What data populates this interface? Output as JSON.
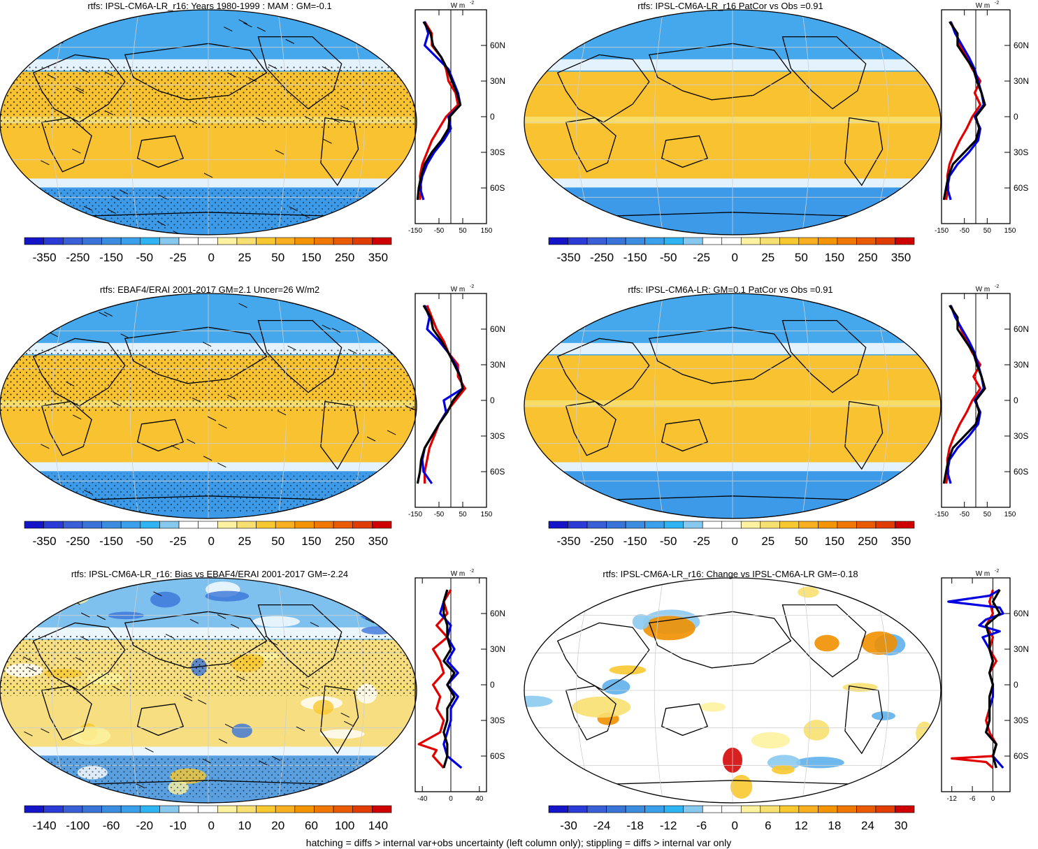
{
  "footer": "hatching = diffs > internal var+obs uncertainty (left column only); stippling = diffs > internal var only",
  "colorbar_colors": [
    "#1414c8",
    "#2b3bd8",
    "#3a5fd6",
    "#3a74d8",
    "#3c8ce0",
    "#3aa0ec",
    "#2eb4f2",
    "#86c8ee",
    "#ffffff",
    "#ffffff",
    "#fdf2a0",
    "#f8e070",
    "#f8c830",
    "#f8b020",
    "#f49400",
    "#f07800",
    "#ea5a00",
    "#e23c00",
    "#cf0000"
  ],
  "colorbars": {
    "rtfs": [
      "-350",
      "-250",
      "-150",
      "-50",
      "-25",
      "0",
      "25",
      "50",
      "150",
      "250",
      "350"
    ],
    "bias": [
      "-140",
      "-100",
      "-60",
      "-20",
      "-10",
      "0",
      "10",
      "20",
      "60",
      "100",
      "140"
    ],
    "change": [
      "-30",
      "-24",
      "-18",
      "-12",
      "-6",
      "0",
      "6",
      "12",
      "18",
      "24",
      "30"
    ]
  },
  "chart_data": [
    {
      "type": "heatmap",
      "panel": "a",
      "title": "rtfs: IPSL-CM6A-LR_r16: Years 1980-1999 : MAM : GM=-0.1",
      "colorbar": "rtfs",
      "stippled": true,
      "hatched": true
    },
    {
      "type": "line",
      "panel": "a-zonal",
      "unit_label": "W m",
      "unit_superscript": "-2",
      "xlim": [
        -150,
        150
      ],
      "xticks": [
        "-150",
        "-50",
        "50",
        "150"
      ],
      "ylim": [
        -90,
        90
      ],
      "yticks": [
        "60N",
        "30N",
        "0",
        "30S",
        "60S"
      ],
      "series": [
        {
          "color": "#e00000",
          "lat": [
            80,
            70,
            60,
            50,
            40,
            30,
            20,
            10,
            0,
            -10,
            -20,
            -30,
            -40,
            -50,
            -60,
            -70
          ],
          "value": [
            -110,
            -80,
            -80,
            -40,
            -20,
            -10,
            20,
            30,
            -20,
            -50,
            -80,
            -100,
            -120,
            -130,
            -125,
            -130
          ]
        },
        {
          "color": "#0000e0",
          "lat": [
            80,
            70,
            60,
            50,
            40,
            30,
            20,
            10,
            0,
            -10,
            -20,
            -30,
            -40,
            -50,
            -60,
            -70
          ],
          "value": [
            -110,
            -95,
            -110,
            -60,
            -10,
            10,
            30,
            40,
            -10,
            0,
            -30,
            -70,
            -100,
            -120,
            -130,
            -115
          ]
        },
        {
          "color": "#000000",
          "lat": [
            80,
            70,
            60,
            50,
            40,
            30,
            20,
            10,
            0,
            -10,
            -20,
            -30,
            -40,
            -50,
            -60,
            -70
          ],
          "value": [
            -115,
            -85,
            -75,
            -40,
            -15,
            5,
            25,
            40,
            -5,
            -10,
            -40,
            -80,
            -110,
            -125,
            -135,
            -140
          ]
        }
      ]
    },
    {
      "type": "heatmap",
      "panel": "b",
      "title": "rtfs: IPSL-CM6A-LR_r16 PatCor vs Obs =0.91",
      "colorbar": "rtfs",
      "stippled": false,
      "hatched": false
    },
    {
      "type": "line",
      "panel": "b-zonal",
      "unit_label": "W m",
      "unit_superscript": "-2",
      "xlim": [
        -150,
        150
      ],
      "xticks": [
        "-150",
        "-50",
        "50",
        "150"
      ],
      "ylim": [
        -90,
        90
      ],
      "yticks": [
        "60N",
        "30N",
        "0",
        "30S",
        "60S"
      ],
      "series": [
        {
          "color": "#e00000",
          "lat": [
            80,
            70,
            60,
            50,
            40,
            30,
            20,
            10,
            0,
            -10,
            -20,
            -30,
            -40,
            -50,
            -60,
            -70
          ],
          "value": [
            -110,
            -85,
            -70,
            -40,
            -15,
            20,
            -5,
            20,
            -15,
            -40,
            -70,
            -95,
            -115,
            -125,
            -120,
            -130
          ]
        },
        {
          "color": "#0000e0",
          "lat": [
            80,
            70,
            60,
            50,
            40,
            30,
            20,
            10,
            0,
            -10,
            -20,
            -30,
            -40,
            -50,
            -60,
            -70
          ],
          "value": [
            -110,
            -90,
            -60,
            -30,
            -5,
            10,
            25,
            35,
            -5,
            20,
            10,
            -30,
            -80,
            -115,
            -125,
            -110
          ]
        },
        {
          "color": "#000000",
          "lat": [
            80,
            70,
            60,
            50,
            40,
            30,
            20,
            10,
            0,
            -10,
            -20,
            -30,
            -40,
            -50,
            -60,
            -70
          ],
          "value": [
            -115,
            -80,
            -80,
            -45,
            -10,
            5,
            25,
            40,
            0,
            15,
            0,
            -50,
            -100,
            -120,
            -130,
            -140
          ]
        }
      ]
    },
    {
      "type": "heatmap",
      "panel": "c",
      "title": "rtfs: EBAF4/ERAI 2001-2017 GM=2.1 Uncer=26 W/m2",
      "colorbar": "rtfs",
      "stippled": true,
      "hatched": true
    },
    {
      "type": "line",
      "panel": "c-zonal",
      "unit_label": "W m",
      "unit_superscript": "-2",
      "xlim": [
        -150,
        150
      ],
      "xticks": [
        "-150",
        "-50",
        "50",
        "150"
      ],
      "ylim": [
        -90,
        90
      ],
      "yticks": [
        "60N",
        "30N",
        "0",
        "30S",
        "60S"
      ],
      "series": [
        {
          "color": "#e00000",
          "lat": [
            80,
            70,
            60,
            50,
            40,
            30,
            20,
            10,
            0,
            -10,
            -20,
            -30,
            -40,
            -50,
            -60,
            -70
          ],
          "value": [
            -100,
            -80,
            -60,
            -30,
            -10,
            30,
            30,
            60,
            20,
            -20,
            -50,
            -70,
            -90,
            -100,
            -110,
            -110
          ]
        },
        {
          "color": "#0000e0",
          "lat": [
            80,
            70,
            60,
            50,
            40,
            30,
            20,
            10,
            0,
            -10,
            -20,
            -30,
            -40,
            -50,
            -60,
            -70
          ],
          "value": [
            -110,
            -90,
            -100,
            -50,
            -10,
            20,
            40,
            50,
            -30,
            -20,
            -50,
            -80,
            -110,
            -120,
            -115,
            -80
          ]
        },
        {
          "color": "#000000",
          "lat": [
            80,
            70,
            60,
            50,
            40,
            30,
            20,
            10,
            0,
            -10,
            -20,
            -30,
            -40,
            -50,
            -60,
            -70
          ],
          "value": [
            -115,
            -85,
            -75,
            -40,
            -10,
            15,
            40,
            50,
            10,
            -15,
            -50,
            -80,
            -110,
            -125,
            -130,
            -140
          ]
        }
      ]
    },
    {
      "type": "heatmap",
      "panel": "d",
      "title": "rtfs: IPSL-CM6A-LR: GM=0.1 PatCor vs Obs =0.91",
      "colorbar": "rtfs",
      "stippled": false,
      "hatched": false
    },
    {
      "type": "line",
      "panel": "d-zonal",
      "unit_label": "W m",
      "unit_superscript": "-2",
      "xlim": [
        -150,
        150
      ],
      "xticks": [
        "-150",
        "-50",
        "50",
        "150"
      ],
      "ylim": [
        -90,
        90
      ],
      "yticks": [
        "60N",
        "30N",
        "0",
        "30S",
        "60S"
      ],
      "series": [
        {
          "color": "#e00000",
          "lat": [
            80,
            70,
            60,
            50,
            40,
            30,
            20,
            10,
            0,
            -10,
            -20,
            -30,
            -40,
            -50,
            -60,
            -70
          ],
          "value": [
            -110,
            -85,
            -65,
            -40,
            -15,
            20,
            -10,
            20,
            -15,
            -40,
            -70,
            -95,
            -115,
            -125,
            -120,
            -130
          ]
        },
        {
          "color": "#0000e0",
          "lat": [
            80,
            70,
            60,
            50,
            40,
            30,
            20,
            10,
            0,
            -10,
            -20,
            -30,
            -40,
            -50,
            -60,
            -70
          ],
          "value": [
            -110,
            -90,
            -60,
            -30,
            -5,
            10,
            25,
            35,
            -5,
            20,
            10,
            -30,
            -80,
            -115,
            -125,
            -110
          ]
        },
        {
          "color": "#000000",
          "lat": [
            80,
            70,
            60,
            50,
            40,
            30,
            20,
            10,
            0,
            -10,
            -20,
            -30,
            -40,
            -50,
            -60,
            -70
          ],
          "value": [
            -115,
            -80,
            -80,
            -45,
            -10,
            5,
            25,
            40,
            0,
            15,
            0,
            -50,
            -100,
            -120,
            -130,
            -140
          ]
        }
      ]
    },
    {
      "type": "heatmap",
      "panel": "e",
      "title": "rtfs: IPSL-CM6A-LR_r16: Bias vs EBAF4/ERAI 2001-2017 GM=-2.24",
      "colorbar": "bias",
      "stippled": true,
      "hatched": true
    },
    {
      "type": "line",
      "panel": "e-zonal",
      "unit_label": "W m",
      "unit_superscript": "-2",
      "xlim": [
        -50,
        50
      ],
      "xticks": [
        "-40",
        "0",
        "40"
      ],
      "ylim": [
        -90,
        90
      ],
      "yticks": [
        "60N",
        "30N",
        "0",
        "30S",
        "60S"
      ],
      "series": [
        {
          "color": "#e00000",
          "lat": [
            80,
            70,
            60,
            50,
            40,
            30,
            20,
            10,
            0,
            -10,
            -20,
            -30,
            -40,
            -50,
            -55,
            -60,
            -70
          ],
          "value": [
            0,
            -10,
            -5,
            -20,
            -5,
            -25,
            -15,
            -10,
            -25,
            -15,
            -20,
            -10,
            -15,
            -45,
            -20,
            -25,
            -10
          ]
        },
        {
          "color": "#0000e0",
          "lat": [
            80,
            70,
            60,
            50,
            40,
            30,
            20,
            10,
            0,
            -10,
            -20,
            -30,
            -40,
            -50,
            -60,
            -70
          ],
          "value": [
            -5,
            -10,
            -15,
            0,
            -5,
            5,
            -5,
            10,
            -5,
            10,
            0,
            0,
            -5,
            -10,
            -5,
            15
          ]
        },
        {
          "color": "#000000",
          "lat": [
            80,
            70,
            60,
            50,
            40,
            30,
            20,
            10,
            0,
            -10,
            -20,
            -30,
            -40,
            -50,
            -60,
            -70
          ],
          "value": [
            -5,
            -10,
            -10,
            -5,
            -5,
            0,
            -10,
            5,
            -5,
            5,
            -5,
            -5,
            -10,
            -5,
            -5,
            -10
          ]
        }
      ]
    },
    {
      "type": "heatmap",
      "panel": "f",
      "title": "rtfs: IPSL-CM6A-LR_r16: Change vs IPSL-CM6A-LR GM=-0.18",
      "colorbar": "change",
      "stippled": false,
      "hatched": false
    },
    {
      "type": "line",
      "panel": "f-zonal",
      "unit_label": "W m",
      "unit_superscript": "-2",
      "xlim": [
        -15,
        5
      ],
      "xticks": [
        "-12",
        "-6",
        "0"
      ],
      "ylim": [
        -90,
        90
      ],
      "yticks": [
        "60N",
        "30N",
        "0",
        "30S",
        "60S"
      ],
      "series": [
        {
          "color": "#e00000",
          "lat": [
            80,
            70,
            60,
            50,
            40,
            30,
            20,
            10,
            0,
            -10,
            -20,
            -30,
            -40,
            -50,
            -60,
            -62,
            -65,
            -70
          ],
          "value": [
            0,
            -1,
            0,
            -2,
            0,
            -1,
            1,
            -1,
            0,
            -1,
            -1,
            -2,
            -1,
            1,
            0,
            -12,
            -2,
            0
          ]
        },
        {
          "color": "#0000e0",
          "lat": [
            80,
            75,
            70,
            65,
            60,
            55,
            50,
            45,
            40,
            30,
            20,
            10,
            0,
            -10,
            -20,
            -30,
            -40,
            -50,
            -60,
            -70
          ],
          "value": [
            2,
            -1,
            -13,
            2,
            3,
            -2,
            -4,
            2,
            -3,
            -1,
            0,
            -1,
            0,
            0,
            -1,
            -1,
            -2,
            1,
            0,
            3
          ]
        },
        {
          "color": "#000000",
          "lat": [
            80,
            70,
            60,
            50,
            40,
            30,
            20,
            10,
            0,
            -10,
            -20,
            -30,
            -40,
            -50,
            -60,
            -70
          ],
          "value": [
            2,
            0,
            2,
            -2,
            -1,
            -1,
            0,
            -1,
            0,
            -1,
            -1,
            -1,
            -2,
            1,
            0,
            1
          ]
        }
      ]
    }
  ]
}
